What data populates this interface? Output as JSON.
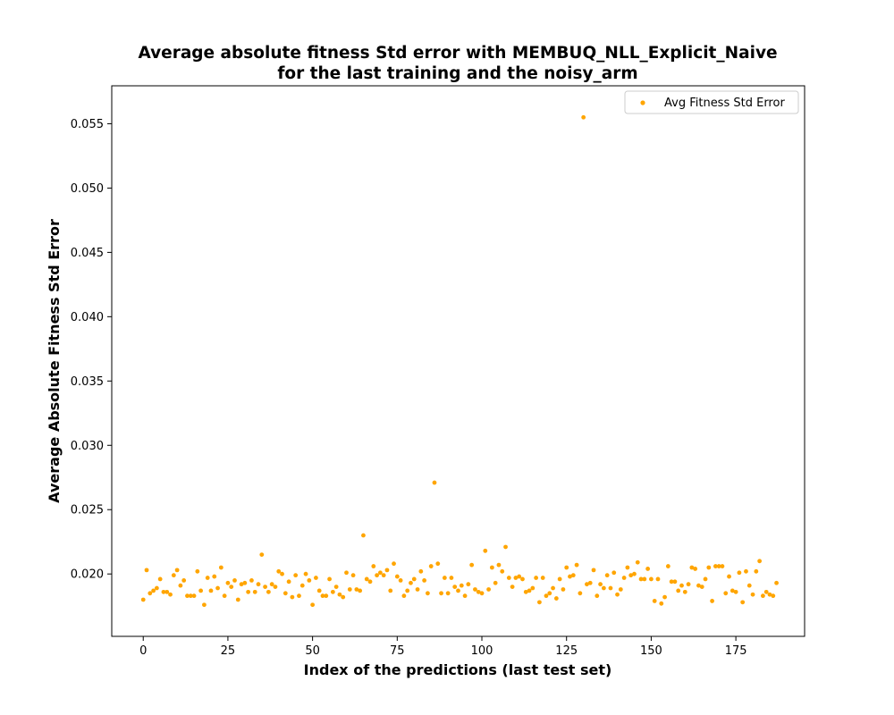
{
  "colors": {
    "marker": "#FFA500",
    "axis": "#000000",
    "legend_border": "#cccccc",
    "background": "#ffffff"
  },
  "chart_data": {
    "type": "scatter",
    "title_line1": "Average absolute fitness Std error with MEMBUQ_NLL_Explicit_Naive",
    "title_line2": "for the last training and the noisy_arm",
    "xlabel": "Index of the predictions (last test set)",
    "ylabel": "Average Absolute Fitness Std Error",
    "xlim": [
      -9.3,
      195.3
    ],
    "ylim": [
      0.01515,
      0.05795
    ],
    "x_ticks": [
      0,
      25,
      50,
      75,
      100,
      125,
      150,
      175
    ],
    "x_tick_labels": [
      "0",
      "25",
      "50",
      "75",
      "100",
      "125",
      "150",
      "175"
    ],
    "y_ticks": [
      0.02,
      0.025,
      0.03,
      0.035,
      0.04,
      0.045,
      0.05,
      0.055
    ],
    "y_tick_labels": [
      "0.020",
      "0.025",
      "0.030",
      "0.035",
      "0.040",
      "0.045",
      "0.050",
      "0.055"
    ],
    "grid": false,
    "legend_position": "upper right",
    "series": [
      {
        "name": "Avg Fitness Std Error",
        "y": [
          0.018,
          0.0203,
          0.0185,
          0.0187,
          0.0189,
          0.0196,
          0.0186,
          0.0186,
          0.0184,
          0.0199,
          0.0203,
          0.0191,
          0.0195,
          0.0183,
          0.0183,
          0.0183,
          0.0202,
          0.0187,
          0.0176,
          0.0197,
          0.0187,
          0.0198,
          0.0189,
          0.0205,
          0.0183,
          0.0193,
          0.019,
          0.0195,
          0.018,
          0.0192,
          0.0193,
          0.0186,
          0.0195,
          0.0186,
          0.0192,
          0.0215,
          0.019,
          0.0186,
          0.0192,
          0.019,
          0.0202,
          0.02,
          0.0185,
          0.0194,
          0.0182,
          0.0199,
          0.0183,
          0.0191,
          0.02,
          0.0195,
          0.0176,
          0.0197,
          0.0187,
          0.0183,
          0.0183,
          0.0196,
          0.0186,
          0.019,
          0.0184,
          0.0182,
          0.0201,
          0.0188,
          0.0199,
          0.0188,
          0.0187,
          0.023,
          0.0196,
          0.0194,
          0.0206,
          0.0199,
          0.0201,
          0.0199,
          0.0203,
          0.0187,
          0.0208,
          0.0198,
          0.0195,
          0.0183,
          0.0187,
          0.0193,
          0.0196,
          0.0188,
          0.0202,
          0.0195,
          0.0185,
          0.0206,
          0.0271,
          0.0208,
          0.0185,
          0.0197,
          0.0185,
          0.0197,
          0.019,
          0.0187,
          0.0191,
          0.0183,
          0.0192,
          0.0207,
          0.0188,
          0.0186,
          0.0185,
          0.0218,
          0.0188,
          0.0205,
          0.0193,
          0.0207,
          0.0202,
          0.0221,
          0.0197,
          0.019,
          0.0197,
          0.0198,
          0.0196,
          0.0186,
          0.0187,
          0.0189,
          0.0197,
          0.0178,
          0.0197,
          0.0183,
          0.0185,
          0.0189,
          0.0181,
          0.0196,
          0.0188,
          0.0205,
          0.0198,
          0.0199,
          0.0207,
          0.0185,
          0.0555,
          0.0192,
          0.0193,
          0.0203,
          0.0183,
          0.0192,
          0.0189,
          0.0199,
          0.0189,
          0.0201,
          0.0184,
          0.0188,
          0.0197,
          0.0205,
          0.0199,
          0.02,
          0.0209,
          0.0196,
          0.0196,
          0.0204,
          0.0196,
          0.0179,
          0.0196,
          0.0177,
          0.0182,
          0.0206,
          0.0194,
          0.0194,
          0.0187,
          0.0191,
          0.0186,
          0.0192,
          0.0205,
          0.0204,
          0.0191,
          0.019,
          0.0196,
          0.0205,
          0.0179,
          0.0206,
          0.0206,
          0.0206,
          0.0185,
          0.0198,
          0.0187,
          0.0186,
          0.0201,
          0.0178,
          0.0202,
          0.0191,
          0.0184,
          0.0202,
          0.021,
          0.0183,
          0.0186,
          0.0184,
          0.0183,
          0.0193
        ]
      }
    ]
  }
}
